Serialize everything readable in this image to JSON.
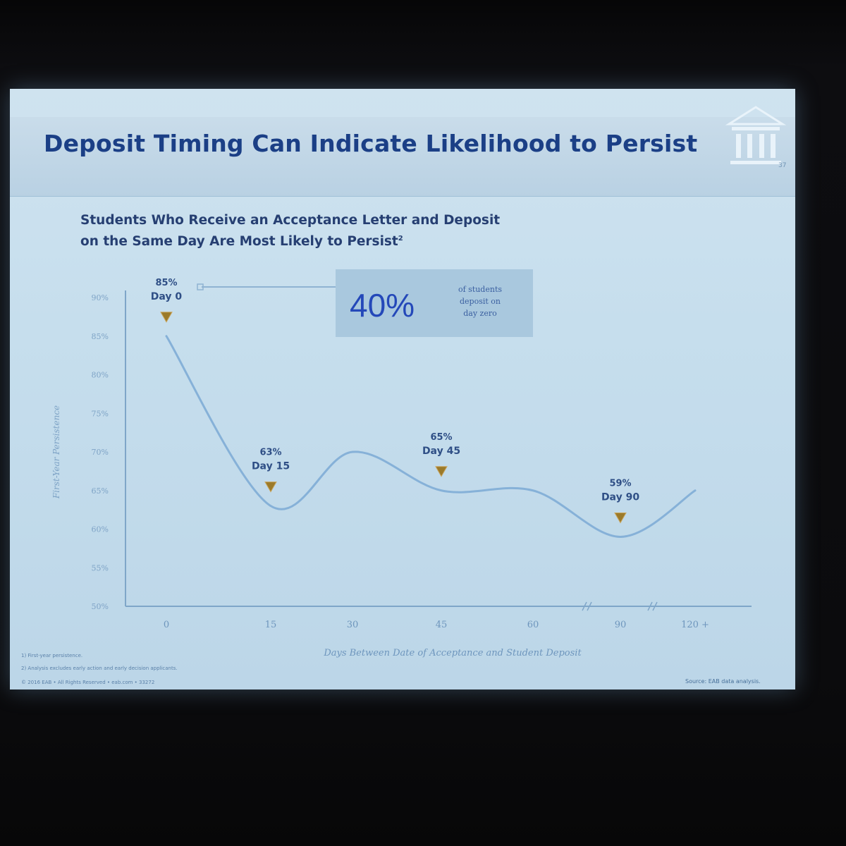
{
  "slide": {
    "title": "Deposit Timing Can Indicate Likelihood to Persist",
    "subtitle_line1": "Students Who Receive an Acceptance Letter and Deposit",
    "subtitle_line2": "on the Same Day Are Most Likely to Persist",
    "subtitle_sup": "2"
  },
  "callout": {
    "value": "40%",
    "text_line1": "of students",
    "text_line2": "deposit on",
    "text_line3": "day zero"
  },
  "chart_data": {
    "type": "line",
    "ylabel": "First-Year Persistence",
    "xlabel": "Days Between Date of Acceptance and Student Deposit",
    "y_ticks": [
      "90%",
      "85%",
      "80%",
      "75%",
      "70%",
      "65%",
      "60%",
      "55%",
      "50%"
    ],
    "x_ticks": [
      "0",
      "15",
      "30",
      "45",
      "60",
      "90",
      "120 +"
    ],
    "ylim": [
      50,
      90
    ],
    "grid": false,
    "axis_breaks": [
      "between 60 and 90",
      "between 90 and 120 +"
    ],
    "series": [
      {
        "x": [
          "0",
          "15",
          "30",
          "45",
          "60",
          "90",
          "120 +"
        ],
        "y": [
          85,
          63,
          70,
          65,
          65,
          59,
          65
        ]
      }
    ],
    "annotations": [
      {
        "x": "0",
        "value": "85%",
        "label": "Day 0"
      },
      {
        "x": "15",
        "value": "63%",
        "label": "Day 15"
      },
      {
        "x": "45",
        "value": "65%",
        "label": "Day 45"
      },
      {
        "x": "90",
        "value": "59%",
        "label": "Day 90"
      }
    ]
  },
  "footnotes": {
    "note1": "1)  First-year persistence.",
    "note2": "2)  Analysis excludes early action and early decision applicants.",
    "note3": "© 2016 EAB • All Rights Reserved • eab.com • 33272",
    "source": "Source: EAB data analysis."
  },
  "colors": {
    "title": "#1b3f86",
    "line": "#86b1d8",
    "marker": "#9b7a2a",
    "axis": "#7fa6c8"
  },
  "logo_icon": "columned-building-icon"
}
